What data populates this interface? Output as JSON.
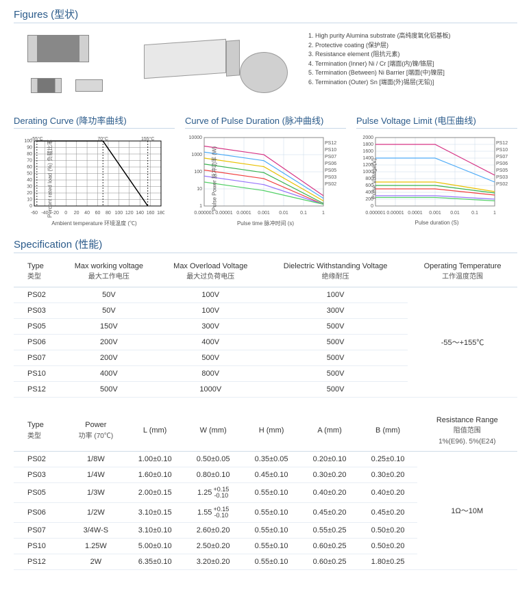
{
  "sections": {
    "figures": "Figures (型状)",
    "derating": "Derating Curve  (降功率曲线)",
    "pulse": "Curve of Pulse Duration (脉冲曲线)",
    "voltage": "Pulse Voltage Limit (电压曲线)",
    "spec": "Specification (性能)"
  },
  "figure_legend": [
    "1. High purity Alumina substrate (高纯度氧化铝基板)",
    "2. Protective coating (保护层)",
    "3. Resistance element (阻抗元素)",
    "4. Termination (Inner) Ni / Cr [端面(内)镍/铬层]",
    "5. Termination (Between) Ni Barrier [端面(中)镍层]",
    "6. Termination (Outer) Sn [端面(外)锡层(无铅)]"
  ],
  "derating_chart": {
    "ylabel": "Percent rated load (%)\n负载比率",
    "xlabel": "Ambient temperature 环境温度 (℃)",
    "ylim": [
      0,
      100
    ],
    "ytick_step": 10,
    "xlim": [
      -60,
      180
    ],
    "xtick_step": 20,
    "grid_color": "#888",
    "line_color": "#000",
    "line": [
      [
        -55,
        100
      ],
      [
        70,
        100
      ],
      [
        155,
        0
      ]
    ],
    "annotations": [
      "-55°C",
      "70°C",
      "155°C"
    ]
  },
  "pulse_chart": {
    "ylabel": "Pulse Power 脉冲功率 (W)",
    "xlabel": "Pulse time 脉冲时间 (s)",
    "xlog": [
      -6,
      0
    ],
    "ylog": [
      0,
      4
    ],
    "grid_color": "#c8d8e8",
    "series": [
      {
        "name": "PS12",
        "color": "#d63384"
      },
      {
        "name": "PS10",
        "color": "#4dabf7"
      },
      {
        "name": "PS07",
        "color": "#e8c000"
      },
      {
        "name": "PS06",
        "color": "#37b24d"
      },
      {
        "name": "PS05",
        "color": "#f03e3e"
      },
      {
        "name": "PS03",
        "color": "#9775fa"
      },
      {
        "name": "PS02",
        "color": "#51cf66"
      }
    ]
  },
  "voltage_chart": {
    "ylabel": "Pulse Voltage(V)",
    "xlabel": "Pulse duration (S)",
    "xlog": [
      -6,
      0
    ],
    "ylin": [
      0,
      2000
    ],
    "ytick_step": 200,
    "grid_color": "#c8d8e8",
    "series": [
      {
        "name": "PS12",
        "color": "#d63384"
      },
      {
        "name": "PS10",
        "color": "#4dabf7"
      },
      {
        "name": "PS07",
        "color": "#e8c000"
      },
      {
        "name": "PS06",
        "color": "#37b24d"
      },
      {
        "name": "PS05",
        "color": "#f03e3e"
      },
      {
        "name": "PS03",
        "color": "#9775fa"
      },
      {
        "name": "PS02",
        "color": "#51cf66"
      }
    ]
  },
  "spec_table1": {
    "headers": [
      {
        "en": "Type",
        "cn": "类型"
      },
      {
        "en": "Max working voltage",
        "cn": "最大工作电压"
      },
      {
        "en": "Max Overload Voltage",
        "cn": "最大过负荷电压"
      },
      {
        "en": "Dielectric Withstanding Voltage",
        "cn": "绝缘耐压"
      },
      {
        "en": "Operating Temperature",
        "cn": "工作温度范围"
      }
    ],
    "rows": [
      [
        "PS02",
        "50V",
        "100V",
        "100V"
      ],
      [
        "PS03",
        "50V",
        "100V",
        "300V"
      ],
      [
        "PS05",
        "150V",
        "300V",
        "500V"
      ],
      [
        "PS06",
        "200V",
        "400V",
        "500V"
      ],
      [
        "PS07",
        "200V",
        "500V",
        "500V"
      ],
      [
        "PS10",
        "400V",
        "800V",
        "500V"
      ],
      [
        "PS12",
        "500V",
        "1000V",
        "500V"
      ]
    ],
    "op_temp": "-55～+155℃"
  },
  "spec_table2": {
    "headers": [
      {
        "en": "Type",
        "cn": "类型"
      },
      {
        "en": "Power",
        "cn": "功率 (70℃)"
      },
      {
        "en": "L (mm)"
      },
      {
        "en": "W (mm)"
      },
      {
        "en": "H (mm)"
      },
      {
        "en": "A (mm)"
      },
      {
        "en": "B (mm)"
      },
      {
        "en": "Resistance Range",
        "cn": "阻值范围",
        "cn2": "1%(E96). 5%(E24)"
      }
    ],
    "rows": [
      [
        "PS02",
        "1/8W",
        "1.00±0.10",
        "0.50±0.05",
        "0.35±0.05",
        "0.20±0.10",
        "0.25±0.10"
      ],
      [
        "PS03",
        "1/4W",
        "1.60±0.10",
        "0.80±0.10",
        "0.45±0.10",
        "0.30±0.20",
        "0.30±0.20"
      ],
      [
        "PS05",
        "1/3W",
        "2.00±0.15",
        "1.25 +0.15 -0.10",
        "0.55±0.10",
        "0.40±0.20",
        "0.40±0.20"
      ],
      [
        "PS06",
        "1/2W",
        "3.10±0.15",
        "1.55 +0.15 -0.10",
        "0.55±0.10",
        "0.45±0.20",
        "0.45±0.20"
      ],
      [
        "PS07",
        "3/4W-S",
        "3.10±0.10",
        "2.60±0.20",
        "0.55±0.10",
        "0.55±0.25",
        "0.50±0.20"
      ],
      [
        "PS10",
        "1.25W",
        "5.00±0.10",
        "2.50±0.20",
        "0.55±0.10",
        "0.60±0.25",
        "0.50±0.20"
      ],
      [
        "PS12",
        "2W",
        "6.35±0.10",
        "3.20±0.20",
        "0.55±0.10",
        "0.60±0.25",
        "1.80±0.25"
      ]
    ],
    "res_range": "1Ω～10M"
  }
}
